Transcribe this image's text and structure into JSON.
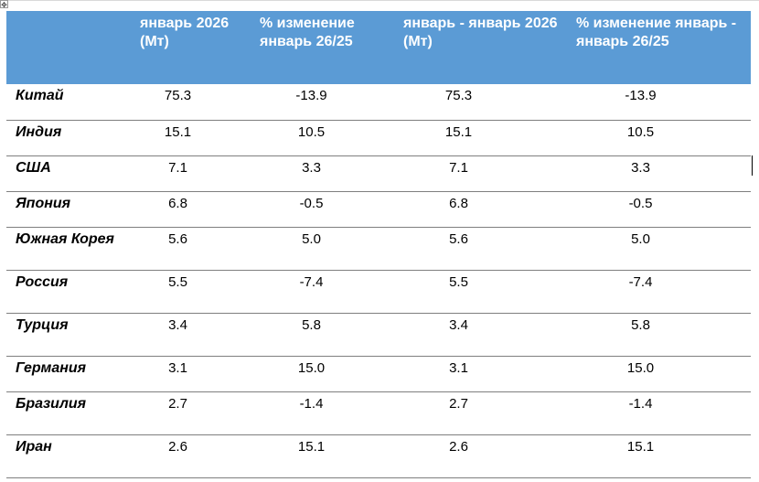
{
  "table": {
    "headers": [
      "",
      "январь 2026 (Мт)",
      "% изменение январь 26/25",
      "январь - январь 2026 (Мт)",
      "% изменение январь - январь 26/25"
    ],
    "rows": [
      {
        "country": "Китай",
        "jan2026": "75.3",
        "chg_jan": "-13.9",
        "ytd2026": "75.3",
        "chg_ytd": "-13.9"
      },
      {
        "country": "Индия",
        "jan2026": "15.1",
        "chg_jan": "10.5",
        "ytd2026": "15.1",
        "chg_ytd": "10.5"
      },
      {
        "country": "США",
        "jan2026": "7.1",
        "chg_jan": "3.3",
        "ytd2026": "7.1",
        "chg_ytd": "3.3"
      },
      {
        "country": "Япония",
        "jan2026": "6.8",
        "chg_jan": "-0.5",
        "ytd2026": "6.8",
        "chg_ytd": "-0.5"
      },
      {
        "country": "Южная Корея",
        "jan2026": "5.6",
        "chg_jan": "5.0",
        "ytd2026": "5.6",
        "chg_ytd": "5.0"
      },
      {
        "country": "Россия",
        "jan2026": "5.5",
        "chg_jan": "-7.4",
        "ytd2026": "5.5",
        "chg_ytd": "-7.4"
      },
      {
        "country": "Турция",
        "jan2026": "3.4",
        "chg_jan": "5.8",
        "ytd2026": "3.4",
        "chg_ytd": "5.8"
      },
      {
        "country": "Германия",
        "jan2026": "3.1",
        "chg_jan": "15.0",
        "ytd2026": "3.1",
        "chg_ytd": "15.0"
      },
      {
        "country": "Бразилия",
        "jan2026": "2.7",
        "chg_jan": "-1.4",
        "ytd2026": "2.7",
        "chg_ytd": "-1.4"
      },
      {
        "country": "Иран",
        "jan2026": "2.6",
        "chg_jan": "15.1",
        "ytd2026": "2.6",
        "chg_ytd": "15.1"
      }
    ]
  }
}
